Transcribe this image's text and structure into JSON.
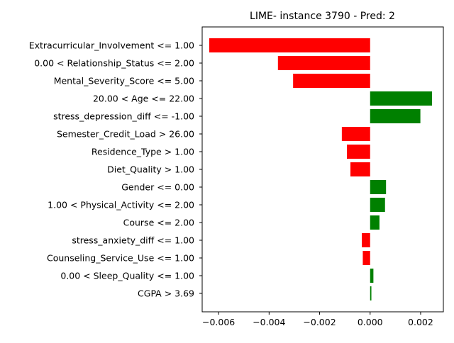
{
  "chart_data": {
    "type": "bar",
    "orientation": "horizontal",
    "title": "LIME- instance 3790 - Pred: 2",
    "xlabel": "",
    "ylabel": "",
    "xlim": [
      -0.00665,
      0.0029
    ],
    "xticks": [
      -0.006,
      -0.004,
      -0.002,
      0.0,
      0.002
    ],
    "xtick_labels": [
      "−0.006",
      "−0.004",
      "−0.002",
      "0.000",
      "0.002"
    ],
    "categories": [
      "Extracurricular_Involvement <= 1.00",
      "0.00 < Relationship_Status <= 2.00",
      "Mental_Severity_Score <= 5.00",
      "20.00 < Age <= 22.00",
      "stress_depression_diff <= -1.00",
      "Semester_Credit_Load > 26.00",
      "Residence_Type > 1.00",
      "Diet_Quality > 1.00",
      "Gender <= 0.00",
      "1.00 < Physical_Activity <= 2.00",
      "Course <= 2.00",
      "stress_anxiety_diff <= 1.00",
      "Counseling_Service_Use <= 1.00",
      "0.00 < Sleep_Quality <= 1.00",
      "CGPA > 3.69"
    ],
    "values": [
      -0.00637,
      -0.00365,
      -0.00305,
      0.00245,
      0.00199,
      -0.00112,
      -0.00092,
      -0.00078,
      0.00063,
      0.00059,
      0.00037,
      -0.00033,
      -0.00029,
      0.00013,
      5e-05
    ],
    "colors": {
      "positive": "#008000",
      "negative": "#ff0000"
    },
    "grid": false,
    "legend": "none"
  }
}
